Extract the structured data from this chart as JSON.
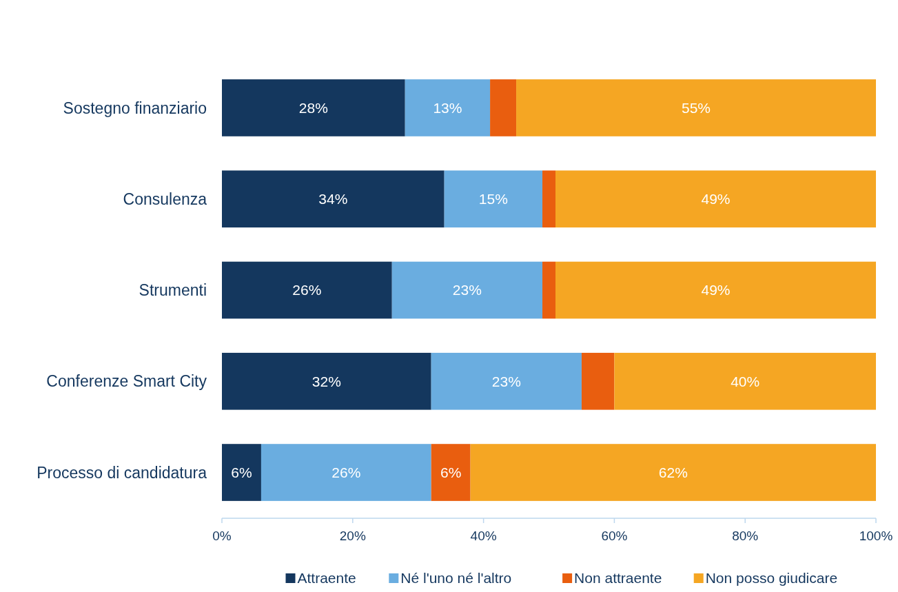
{
  "chart_data": {
    "type": "bar",
    "orientation": "horizontal",
    "stacked": true,
    "categories": [
      "Sostegno finanziario",
      "Consulenza",
      "Strumenti",
      "Conferenze Smart City",
      "Processo di candidatura"
    ],
    "series": [
      {
        "name": "Attraente",
        "color": "#14375e",
        "values": [
          28,
          34,
          26,
          32,
          6
        ],
        "value_labels": [
          "28%",
          "34%",
          "26%",
          "32%",
          "6%"
        ]
      },
      {
        "name": "Né l'uno né l'altro",
        "color": "#6aade0",
        "values": [
          13,
          15,
          23,
          23,
          26
        ],
        "value_labels": [
          "13%",
          "15%",
          "23%",
          "23%",
          "26%"
        ]
      },
      {
        "name": "Non attraente",
        "color": "#e95e0f",
        "values": [
          4,
          2,
          2,
          5,
          6
        ],
        "value_labels": [
          null,
          null,
          null,
          null,
          "6%"
        ]
      },
      {
        "name": "Non posso giudicare",
        "color": "#f5a623",
        "values": [
          55,
          49,
          49,
          40,
          62
        ],
        "value_labels": [
          "55%",
          "49%",
          "49%",
          "40%",
          "62%"
        ]
      }
    ],
    "xlim": [
      0,
      100
    ],
    "xticks": [
      {
        "value": 0,
        "label": "0%"
      },
      {
        "value": 20,
        "label": "20%"
      },
      {
        "value": 40,
        "label": "40%"
      },
      {
        "value": 60,
        "label": "60%"
      },
      {
        "value": 80,
        "label": "80%"
      },
      {
        "value": 100,
        "label": "100%"
      }
    ],
    "legend": "bottom",
    "grid": false
  }
}
